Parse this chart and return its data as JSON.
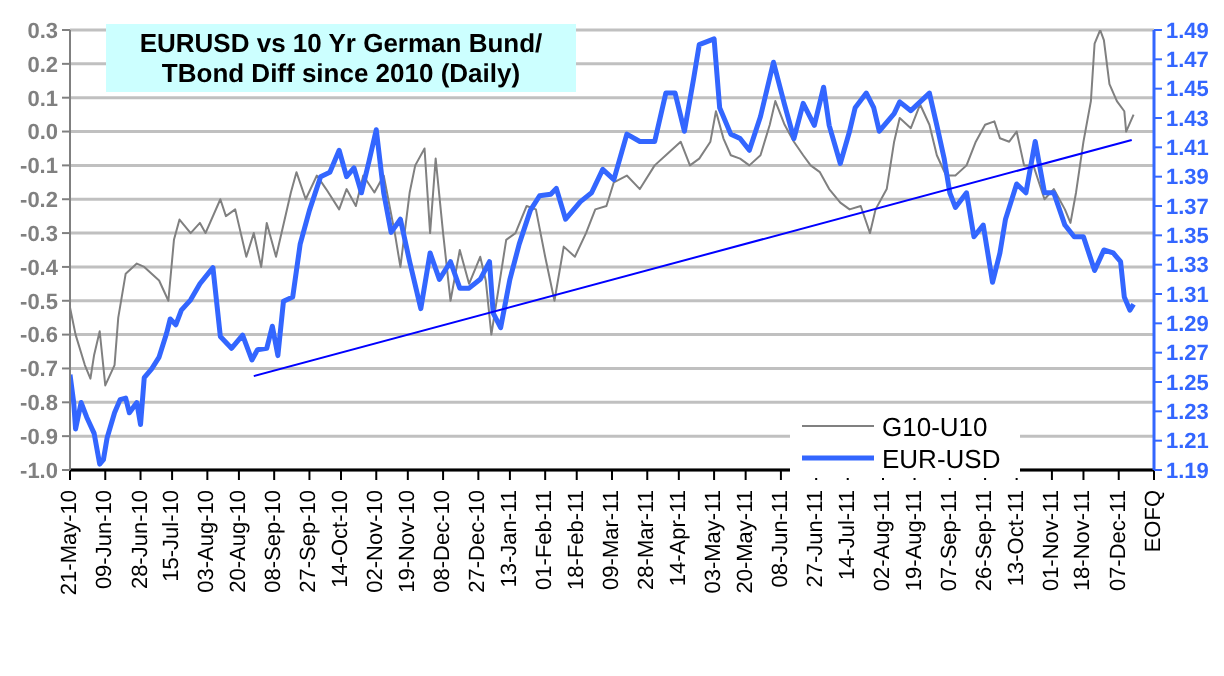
{
  "chart_data": {
    "type": "line",
    "title": "EURUSD vs 10 Yr German Bund/ TBond Diff since 2010 (Daily)",
    "xlim": [
      "2010-05-21",
      "2011-12-26"
    ],
    "xticks": [
      {
        "value": "2010-05-21",
        "label": "21-May-10"
      },
      {
        "value": "2010-06-09",
        "label": "09-Jun-10"
      },
      {
        "value": "2010-06-28",
        "label": "28-Jun-10"
      },
      {
        "value": "2010-07-15",
        "label": "15-Jul-10"
      },
      {
        "value": "2010-08-03",
        "label": "03-Aug-10"
      },
      {
        "value": "2010-08-20",
        "label": "20-Aug-10"
      },
      {
        "value": "2010-09-08",
        "label": "08-Sep-10"
      },
      {
        "value": "2010-09-27",
        "label": "27-Sep-10"
      },
      {
        "value": "2010-10-14",
        "label": "14-Oct-10"
      },
      {
        "value": "2010-11-02",
        "label": "02-Nov-10"
      },
      {
        "value": "2010-11-19",
        "label": "19-Nov-10"
      },
      {
        "value": "2010-12-08",
        "label": "08-Dec-10"
      },
      {
        "value": "2010-12-27",
        "label": "27-Dec-10"
      },
      {
        "value": "2011-01-13",
        "label": "13-Jan-11"
      },
      {
        "value": "2011-02-01",
        "label": "01-Feb-11"
      },
      {
        "value": "2011-02-18",
        "label": "18-Feb-11"
      },
      {
        "value": "2011-03-09",
        "label": "09-Mar-11"
      },
      {
        "value": "2011-03-28",
        "label": "28-Mar-11"
      },
      {
        "value": "2011-04-14",
        "label": "14-Apr-11"
      },
      {
        "value": "2011-05-03",
        "label": "03-May-11"
      },
      {
        "value": "2011-05-20",
        "label": "20-May-11"
      },
      {
        "value": "2011-06-08",
        "label": "08-Jun-11"
      },
      {
        "value": "2011-06-27",
        "label": "27-Jun-11"
      },
      {
        "value": "2011-07-14",
        "label": "14-Jul-11"
      },
      {
        "value": "2011-08-02",
        "label": "02-Aug-11"
      },
      {
        "value": "2011-08-19",
        "label": "19-Aug-11"
      },
      {
        "value": "2011-09-07",
        "label": "07-Sep-11"
      },
      {
        "value": "2011-09-26",
        "label": "26-Sep-11"
      },
      {
        "value": "2011-10-13",
        "label": "13-Oct-11"
      },
      {
        "value": "2011-11-01",
        "label": "01-Nov-11"
      },
      {
        "value": "2011-11-18",
        "label": "18-Nov-11"
      },
      {
        "value": "2011-12-07",
        "label": "07-Dec-11"
      },
      {
        "value": "2011-12-26",
        "label": "EOFQ"
      }
    ],
    "ylim": [
      -1.0,
      0.3
    ],
    "yticks": [
      {
        "value": -1.0,
        "label": "-1.0"
      },
      -0.9,
      -0.8,
      -0.7,
      -0.6,
      -0.5,
      -0.4,
      -0.3,
      -0.2,
      -0.1,
      {
        "value": 0,
        "label": "0.0"
      },
      0.1,
      0.2,
      0.3
    ],
    "y2lim": [
      1.19,
      1.49
    ],
    "y2ticks": [
      1.19,
      1.21,
      1.23,
      1.25,
      1.27,
      1.29,
      1.31,
      1.33,
      1.35,
      1.37,
      1.39,
      1.41,
      1.43,
      1.45,
      1.47,
      1.49
    ],
    "grid": "y",
    "legend": "bottom right",
    "marker": "none",
    "line_style": "solid",
    "series": [
      {
        "name": "G10-U10",
        "color": "#808080",
        "x": [
          "2010-05-21",
          "2010-05-24",
          "2010-05-29",
          "2010-06-01",
          "2010-06-03",
          "2010-06-06",
          "2010-06-09",
          "2010-06-14",
          "2010-06-16",
          "2010-06-20",
          "2010-06-26",
          "2010-06-30",
          "2010-07-08",
          "2010-07-13",
          "2010-07-16",
          "2010-07-19",
          "2010-07-25",
          "2010-07-30",
          "2010-08-02",
          "2010-08-10",
          "2010-08-13",
          "2010-08-18",
          "2010-08-24",
          "2010-08-28",
          "2010-09-01",
          "2010-09-04",
          "2010-09-09",
          "2010-09-17",
          "2010-09-20",
          "2010-09-25",
          "2010-10-01",
          "2010-10-06",
          "2010-10-13",
          "2010-10-17",
          "2010-10-22",
          "2010-10-26",
          "2010-11-01",
          "2010-11-06",
          "2010-11-12",
          "2010-11-15",
          "2010-11-20",
          "2010-11-23",
          "2010-11-28",
          "2010-12-01",
          "2010-12-04",
          "2010-12-08",
          "2010-12-12",
          "2010-12-17",
          "2010-12-22",
          "2010-12-28",
          "2010-12-31",
          "2011-01-03",
          "2011-01-11",
          "2011-01-16",
          "2011-01-22",
          "2011-01-27",
          "2011-02-01",
          "2011-02-06",
          "2011-02-11",
          "2011-02-17",
          "2011-02-23",
          "2011-02-28",
          "2011-03-06",
          "2011-03-10",
          "2011-03-17",
          "2011-03-24",
          "2011-04-01",
          "2011-04-07",
          "2011-04-15",
          "2011-04-20",
          "2011-04-25",
          "2011-05-01",
          "2011-05-04",
          "2011-05-08",
          "2011-05-12",
          "2011-05-17",
          "2011-05-22",
          "2011-05-28",
          "2011-06-02",
          "2011-06-05",
          "2011-06-10",
          "2011-06-15",
          "2011-06-20",
          "2011-06-24",
          "2011-06-29",
          "2011-07-04",
          "2011-07-10",
          "2011-07-15",
          "2011-07-21",
          "2011-07-26",
          "2011-07-29",
          "2011-08-04",
          "2011-08-08",
          "2011-08-11",
          "2011-08-17",
          "2011-08-22",
          "2011-08-27",
          "2011-08-31",
          "2011-09-05",
          "2011-09-10",
          "2011-09-16",
          "2011-09-21",
          "2011-09-26",
          "2011-10-01",
          "2011-10-04",
          "2011-10-09",
          "2011-10-13",
          "2011-10-17",
          "2011-10-22",
          "2011-10-28",
          "2011-11-02",
          "2011-11-08",
          "2011-11-11",
          "2011-11-14",
          "2011-11-18",
          "2011-11-22",
          "2011-11-24",
          "2011-11-27",
          "2011-11-29",
          "2011-12-02",
          "2011-12-06",
          "2011-12-10",
          "2011-12-11",
          "2011-12-15"
        ],
        "values": [
          -0.52,
          -0.6,
          -0.69,
          -0.73,
          -0.66,
          -0.59,
          -0.75,
          -0.69,
          -0.55,
          -0.42,
          -0.39,
          -0.4,
          -0.44,
          -0.5,
          -0.32,
          -0.26,
          -0.3,
          -0.27,
          -0.3,
          -0.2,
          -0.25,
          -0.23,
          -0.37,
          -0.3,
          -0.4,
          -0.27,
          -0.37,
          -0.18,
          -0.12,
          -0.2,
          -0.13,
          -0.17,
          -0.23,
          -0.17,
          -0.22,
          -0.13,
          -0.18,
          -0.13,
          -0.3,
          -0.4,
          -0.18,
          -0.1,
          -0.05,
          -0.3,
          -0.08,
          -0.3,
          -0.5,
          -0.35,
          -0.45,
          -0.37,
          -0.44,
          -0.6,
          -0.32,
          -0.3,
          -0.22,
          -0.23,
          -0.37,
          -0.5,
          -0.34,
          -0.37,
          -0.3,
          -0.23,
          -0.22,
          -0.15,
          -0.13,
          -0.17,
          -0.1,
          -0.07,
          -0.03,
          -0.1,
          -0.08,
          -0.03,
          0.06,
          -0.02,
          -0.07,
          -0.08,
          -0.1,
          -0.07,
          0.02,
          0.09,
          0.02,
          -0.03,
          -0.07,
          -0.1,
          -0.12,
          -0.17,
          -0.21,
          -0.23,
          -0.22,
          -0.3,
          -0.23,
          -0.17,
          -0.03,
          0.04,
          0.01,
          0.08,
          0.02,
          -0.07,
          -0.13,
          -0.13,
          -0.1,
          -0.03,
          0.02,
          0.03,
          -0.02,
          -0.03,
          0.0,
          -0.1,
          -0.1,
          -0.2,
          -0.17,
          -0.23,
          -0.27,
          -0.18,
          -0.03,
          0.09,
          0.26,
          0.3,
          0.27,
          0.14,
          0.09,
          0.06,
          0.0,
          0.05
        ]
      },
      {
        "name": "EUR-USD",
        "color": "#3366ff",
        "axis": "y2",
        "x": [
          "2010-05-21",
          "2010-05-23",
          "2010-05-24",
          "2010-05-27",
          "2010-05-30",
          "2010-06-03",
          "2010-06-06",
          "2010-06-08",
          "2010-06-10",
          "2010-06-14",
          "2010-06-17",
          "2010-06-20",
          "2010-06-22",
          "2010-06-26",
          "2010-06-28",
          "2010-06-30",
          "2010-07-04",
          "2010-07-08",
          "2010-07-12",
          "2010-07-14",
          "2010-07-17",
          "2010-07-20",
          "2010-07-25",
          "2010-07-30",
          "2010-08-06",
          "2010-08-10",
          "2010-08-16",
          "2010-08-22",
          "2010-08-27",
          "2010-08-30",
          "2010-09-04",
          "2010-09-07",
          "2010-09-10",
          "2010-09-13",
          "2010-09-18",
          "2010-09-22",
          "2010-09-27",
          "2010-10-03",
          "2010-10-08",
          "2010-10-13",
          "2010-10-17",
          "2010-10-21",
          "2010-10-25",
          "2010-10-29",
          "2010-11-02",
          "2010-11-06",
          "2010-11-10",
          "2010-11-15",
          "2010-11-20",
          "2010-11-26",
          "2010-12-01",
          "2010-12-06",
          "2010-12-12",
          "2010-12-17",
          "2010-12-22",
          "2010-12-28",
          "2011-01-02",
          "2011-01-04",
          "2011-01-08",
          "2011-01-13",
          "2011-01-18",
          "2011-01-24",
          "2011-01-29",
          "2011-02-04",
          "2011-02-07",
          "2011-02-12",
          "2011-02-20",
          "2011-02-26",
          "2011-03-04",
          "2011-03-10",
          "2011-03-17",
          "2011-03-24",
          "2011-04-01",
          "2011-04-07",
          "2011-04-12",
          "2011-04-17",
          "2011-04-22",
          "2011-04-25",
          "2011-05-03",
          "2011-05-06",
          "2011-05-12",
          "2011-05-17",
          "2011-05-22",
          "2011-05-28",
          "2011-06-04",
          "2011-06-10",
          "2011-06-15",
          "2011-06-20",
          "2011-06-26",
          "2011-07-01",
          "2011-07-04",
          "2011-07-10",
          "2011-07-15",
          "2011-07-18",
          "2011-07-24",
          "2011-07-28",
          "2011-07-31",
          "2011-08-08",
          "2011-08-11",
          "2011-08-17",
          "2011-08-22",
          "2011-08-27",
          "2011-08-31",
          "2011-09-04",
          "2011-09-07",
          "2011-09-10",
          "2011-09-16",
          "2011-09-20",
          "2011-09-25",
          "2011-09-30",
          "2011-10-04",
          "2011-10-07",
          "2011-10-13",
          "2011-10-18",
          "2011-10-23",
          "2011-10-28",
          "2011-11-02",
          "2011-11-08",
          "2011-11-13",
          "2011-11-18",
          "2011-11-24",
          "2011-11-29",
          "2011-12-04",
          "2011-12-08",
          "2011-12-10",
          "2011-12-13",
          "2011-12-15"
        ],
        "values": [
          1.255,
          1.236,
          1.218,
          1.236,
          1.226,
          1.215,
          1.194,
          1.197,
          1.212,
          1.229,
          1.238,
          1.239,
          1.229,
          1.236,
          1.221,
          1.253,
          1.259,
          1.267,
          1.283,
          1.293,
          1.289,
          1.299,
          1.306,
          1.317,
          1.328,
          1.281,
          1.273,
          1.282,
          1.265,
          1.272,
          1.273,
          1.288,
          1.268,
          1.305,
          1.308,
          1.344,
          1.367,
          1.39,
          1.393,
          1.408,
          1.39,
          1.396,
          1.379,
          1.4,
          1.422,
          1.379,
          1.352,
          1.361,
          1.332,
          1.3,
          1.338,
          1.32,
          1.332,
          1.314,
          1.314,
          1.32,
          1.332,
          1.297,
          1.287,
          1.32,
          1.344,
          1.367,
          1.377,
          1.378,
          1.382,
          1.361,
          1.373,
          1.379,
          1.395,
          1.388,
          1.419,
          1.414,
          1.414,
          1.447,
          1.447,
          1.421,
          1.457,
          1.48,
          1.484,
          1.437,
          1.419,
          1.416,
          1.408,
          1.431,
          1.468,
          1.439,
          1.416,
          1.44,
          1.425,
          1.451,
          1.425,
          1.399,
          1.421,
          1.437,
          1.447,
          1.437,
          1.421,
          1.433,
          1.441,
          1.435,
          1.441,
          1.447,
          1.425,
          1.402,
          1.379,
          1.369,
          1.379,
          1.349,
          1.357,
          1.318,
          1.338,
          1.361,
          1.385,
          1.379,
          1.414,
          1.379,
          1.379,
          1.357,
          1.349,
          1.349,
          1.326,
          1.34,
          1.338,
          1.332,
          1.308,
          1.299,
          1.303
        ]
      },
      {
        "type": "line",
        "color": "#0000ff",
        "axis": "y2",
        "x": [
          "2010-08-28",
          "2011-12-14"
        ],
        "values": [
          1.254,
          1.415
        ]
      }
    ]
  }
}
